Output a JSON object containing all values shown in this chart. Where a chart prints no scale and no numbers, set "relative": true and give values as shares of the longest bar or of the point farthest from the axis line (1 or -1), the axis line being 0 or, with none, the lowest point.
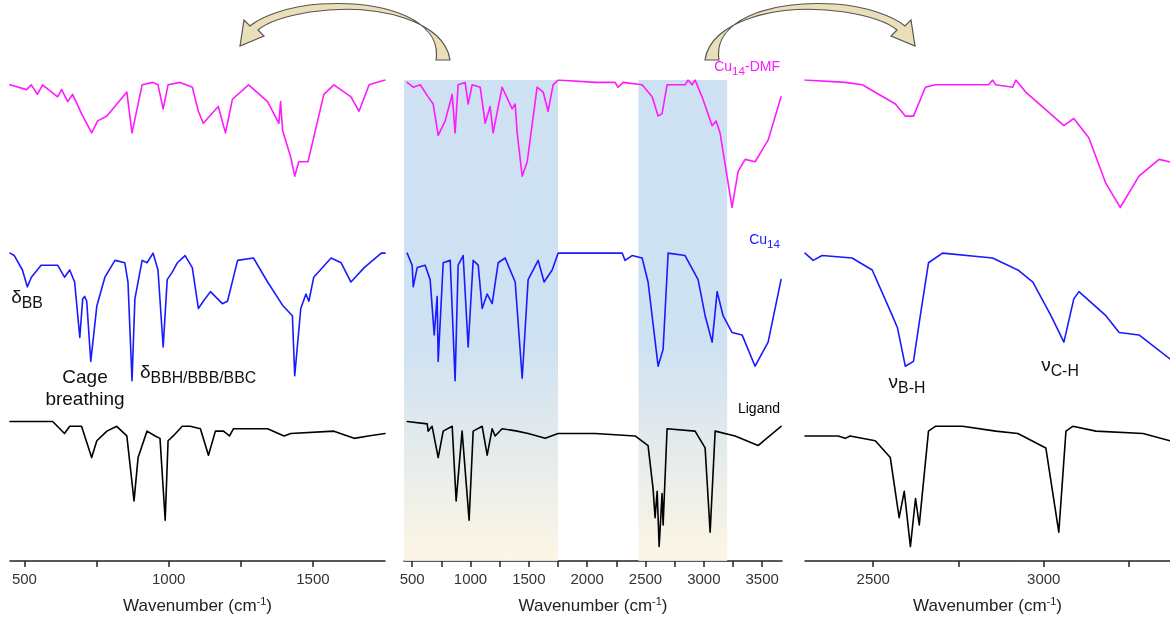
{
  "chart_data": [
    {
      "type": "line",
      "relative": true,
      "xlim": [
        450,
        1750
      ],
      "xticks": [
        500,
        {
          "value": 750,
          "label": null
        },
        1000,
        {
          "value": 1250,
          "label": null
        },
        1500
      ],
      "xlabel": "Wavenumber (cm$^{-1}$)",
      "annotations": [
        "δ$_{BB}$",
        "Cage breathing",
        "δ$_{BBH/BBB/BBC}$"
      ],
      "series": [
        {
          "color": "#ff19ff",
          "x": [
            450,
            507,
            524,
            545,
            563,
            615,
            629,
            650,
            667,
            698,
            733,
            754,
            786,
            855,
            873,
            908,
            946,
            963,
            981,
            998,
            1040,
            1082,
            1103,
            1120,
            1172,
            1197,
            1221,
            1277,
            1343,
            1382,
            1388,
            1395,
            1423,
            1437,
            1451,
            1483,
            1538,
            1573,
            1632,
            1660,
            1695,
            1750
          ],
          "values": [
            0.99,
            0.98,
            0.99,
            0.97,
            0.99,
            0.965,
            0.98,
            0.955,
            0.97,
            0.93,
            0.89,
            0.915,
            0.925,
            0.975,
            0.89,
            0.99,
            0.995,
            0.99,
            0.94,
            0.99,
            0.995,
            0.985,
            0.935,
            0.91,
            0.945,
            0.89,
            0.96,
            0.99,
            0.955,
            0.91,
            0.955,
            0.895,
            0.84,
            0.8,
            0.83,
            0.83,
            0.97,
            0.99,
            0.965,
            0.935,
            0.99,
            1.0
          ]
        },
        {
          "color": "#1a1aff",
          "x": [
            450,
            465,
            493,
            510,
            524,
            558,
            615,
            639,
            657,
            674,
            692,
            702,
            709,
            716,
            730,
            751,
            779,
            814,
            848,
            859,
            873,
            883,
            908,
            925,
            946,
            963,
            981,
            995,
            1012,
            1030,
            1057,
            1082,
            1103,
            1120,
            1145,
            1186,
            1204,
            1239,
            1294,
            1343,
            1397,
            1429,
            1437,
            1458,
            1476,
            1486,
            1503,
            1563,
            1598,
            1632,
            1678,
            1737,
            1750
          ],
          "values": [
            0.64,
            0.635,
            0.605,
            0.57,
            0.59,
            0.615,
            0.615,
            0.59,
            0.605,
            0.58,
            0.465,
            0.545,
            0.55,
            0.54,
            0.415,
            0.53,
            0.59,
            0.625,
            0.62,
            0.58,
            0.375,
            0.545,
            0.625,
            0.62,
            0.64,
            0.605,
            0.445,
            0.585,
            0.6,
            0.62,
            0.635,
            0.61,
            0.525,
            0.54,
            0.56,
            0.535,
            0.54,
            0.625,
            0.63,
            0.58,
            0.53,
            0.51,
            0.385,
            0.525,
            0.555,
            0.54,
            0.59,
            0.63,
            0.62,
            0.58,
            0.61,
            0.64,
            0.64
          ]
        },
        {
          "color": "#000000",
          "x": [
            450,
            598,
            639,
            657,
            698,
            733,
            751,
            786,
            820,
            855,
            880,
            894,
            925,
            953,
            970,
            988,
            998,
            1016,
            1047,
            1075,
            1110,
            1138,
            1162,
            1190,
            1211,
            1225,
            1343,
            1400,
            1423,
            1573,
            1643,
            1692,
            1750
          ],
          "values": [
            0.29,
            0.29,
            0.265,
            0.28,
            0.28,
            0.215,
            0.25,
            0.27,
            0.28,
            0.26,
            0.125,
            0.215,
            0.27,
            0.26,
            0.255,
            0.085,
            0.25,
            0.26,
            0.28,
            0.28,
            0.275,
            0.22,
            0.27,
            0.27,
            0.26,
            0.275,
            0.275,
            0.26,
            0.265,
            0.27,
            0.255,
            0.26,
            0.265
          ]
        }
      ]
    },
    {
      "type": "line",
      "relative": true,
      "xlim": [
        430,
        3670
      ],
      "xticks": [
        500,
        {
          "value": 750,
          "label": null
        },
        1000,
        {
          "value": 1250,
          "label": null
        },
        1500,
        {
          "value": 1750,
          "label": null
        },
        2000,
        {
          "value": 2250,
          "label": null
        },
        2500,
        {
          "value": 2750,
          "label": null
        },
        3000,
        {
          "value": 3250,
          "label": null
        },
        3500
      ],
      "xlabel": "Wavenumber (cm$^{-1}$)",
      "bands": [
        {
          "axis": "x",
          "from": 430,
          "to": 1750,
          "color": "#c6dcf0"
        },
        {
          "axis": "x",
          "from": 2440,
          "to": 3200,
          "color": "#c6dcf0"
        }
      ],
      "series": [
        {
          "name": "Cu$_{14}$-DMF",
          "color": "#ff19ff",
          "x": [
            457,
            509,
            569,
            637,
            680,
            723,
            783,
            843,
            868,
            894,
            954,
            980,
            1014,
            1083,
            1126,
            1168,
            1194,
            1271,
            1357,
            1383,
            1400,
            1443,
            1486,
            1571,
            1623,
            1665,
            1708,
            1751,
            2068,
            2240,
            2265,
            2308,
            2471,
            2557,
            2608,
            2642,
            2685,
            2839,
            2865,
            2899,
            2925,
            2985,
            3071,
            3105,
            3139,
            3242,
            3294,
            3354,
            3439,
            3551,
            3662
          ],
          "values": [
            0.995,
            0.985,
            0.99,
            0.965,
            0.95,
            0.885,
            0.915,
            0.97,
            0.89,
            0.99,
            0.995,
            0.95,
            0.99,
            0.985,
            0.91,
            0.945,
            0.89,
            0.985,
            0.94,
            0.95,
            0.89,
            0.8,
            0.83,
            0.985,
            0.975,
            0.935,
            0.99,
            1.0,
            0.995,
            0.995,
            0.985,
            0.995,
            0.99,
            0.965,
            0.925,
            0.93,
            0.99,
            0.99,
            1.0,
            0.99,
            1.0,
            0.965,
            0.905,
            0.915,
            0.89,
            0.735,
            0.81,
            0.835,
            0.83,
            0.875,
            0.965
          ]
        },
        {
          "name": "Cu$_{14}$",
          "color": "#1a1aff",
          "x": [
            457,
            500,
            509,
            543,
            611,
            654,
            689,
            714,
            723,
            766,
            826,
            868,
            894,
            937,
            980,
            1023,
            1066,
            1100,
            1143,
            1186,
            1237,
            1297,
            1383,
            1443,
            1494,
            1580,
            1631,
            1700,
            1751,
            2068,
            2300,
            2325,
            2385,
            2471,
            2522,
            2608,
            2651,
            2694,
            2839,
            2951,
            3011,
            3071,
            3114,
            3165,
            3242,
            3328,
            3439,
            3551,
            3662
          ],
          "values": [
            0.64,
            0.615,
            0.57,
            0.61,
            0.615,
            0.585,
            0.47,
            0.55,
            0.415,
            0.62,
            0.625,
            0.375,
            0.615,
            0.635,
            0.445,
            0.625,
            0.615,
            0.525,
            0.555,
            0.535,
            0.62,
            0.63,
            0.58,
            0.38,
            0.585,
            0.625,
            0.58,
            0.605,
            0.64,
            0.64,
            0.64,
            0.625,
            0.635,
            0.63,
            0.58,
            0.405,
            0.44,
            0.64,
            0.635,
            0.585,
            0.51,
            0.455,
            0.56,
            0.51,
            0.475,
            0.47,
            0.405,
            0.455,
            0.585
          ]
        },
        {
          "name": "Ligand",
          "color": "#000000",
          "x": [
            457,
            629,
            637,
            671,
            723,
            766,
            843,
            877,
            928,
            988,
            1023,
            1100,
            1143,
            1186,
            1211,
            1271,
            1400,
            1494,
            1640,
            1751,
            2068,
            2411,
            2522,
            2565,
            2582,
            2600,
            2617,
            2642,
            2651,
            2685,
            2925,
            3011,
            3054,
            3097,
            3268,
            3465,
            3662
          ],
          "values": [
            0.29,
            0.285,
            0.27,
            0.28,
            0.215,
            0.27,
            0.28,
            0.125,
            0.27,
            0.085,
            0.27,
            0.28,
            0.22,
            0.275,
            0.26,
            0.275,
            0.27,
            0.265,
            0.255,
            0.265,
            0.265,
            0.26,
            0.24,
            0.15,
            0.09,
            0.145,
            0.03,
            0.14,
            0.075,
            0.275,
            0.27,
            0.235,
            0.06,
            0.27,
            0.26,
            0.24,
            0.28
          ]
        }
      ]
    },
    {
      "type": "line",
      "relative": true,
      "xlim": [
        2300,
        3370
      ],
      "xticks": [
        2500,
        {
          "value": 2750,
          "label": null
        },
        3000,
        {
          "value": 3250,
          "label": null
        }
      ],
      "xlabel": "Wavenumber (cm$^{-1}$)",
      "annotations": [
        "ν$_{B-H}$",
        "ν$_{C-H}$"
      ],
      "series": [
        {
          "color": "#ff19ff",
          "x": [
            2300,
            2418,
            2468,
            2565,
            2594,
            2618,
            2653,
            2682,
            2838,
            2850,
            2859,
            2909,
            2918,
            2947,
            3059,
            3088,
            3132,
            3182,
            3224,
            3279,
            3338,
            3368
          ],
          "values": [
            1.0,
            0.995,
            0.99,
            0.95,
            0.925,
            0.925,
            0.985,
            0.99,
            0.99,
            1.0,
            0.99,
            0.985,
            1.0,
            0.975,
            0.905,
            0.92,
            0.88,
            0.785,
            0.735,
            0.8,
            0.835,
            0.83
          ]
        },
        {
          "color": "#1a1aff",
          "x": [
            2300,
            2324,
            2350,
            2438,
            2497,
            2556,
            2571,
            2594,
            2618,
            2638,
            2662,
            2703,
            2850,
            2924,
            2968,
            3021,
            3059,
            3088,
            3103,
            3182,
            3221,
            3279,
            3370
          ],
          "values": [
            0.64,
            0.625,
            0.635,
            0.63,
            0.605,
            0.51,
            0.485,
            0.405,
            0.415,
            0.51,
            0.62,
            0.64,
            0.63,
            0.605,
            0.58,
            0.51,
            0.455,
            0.545,
            0.56,
            0.51,
            0.475,
            0.47,
            0.42
          ]
        },
        {
          "color": "#000000",
          "x": [
            2300,
            2397,
            2418,
            2432,
            2506,
            2550,
            2576,
            2591,
            2609,
            2624,
            2635,
            2662,
            2682,
            2762,
            2859,
            2924,
            3006,
            3044,
            3065,
            3085,
            3153,
            3291,
            3370
          ],
          "values": [
            0.26,
            0.26,
            0.255,
            0.26,
            0.25,
            0.215,
            0.09,
            0.145,
            0.03,
            0.13,
            0.075,
            0.27,
            0.28,
            0.28,
            0.27,
            0.265,
            0.235,
            0.06,
            0.27,
            0.28,
            0.27,
            0.265,
            0.25
          ]
        }
      ]
    }
  ]
}
